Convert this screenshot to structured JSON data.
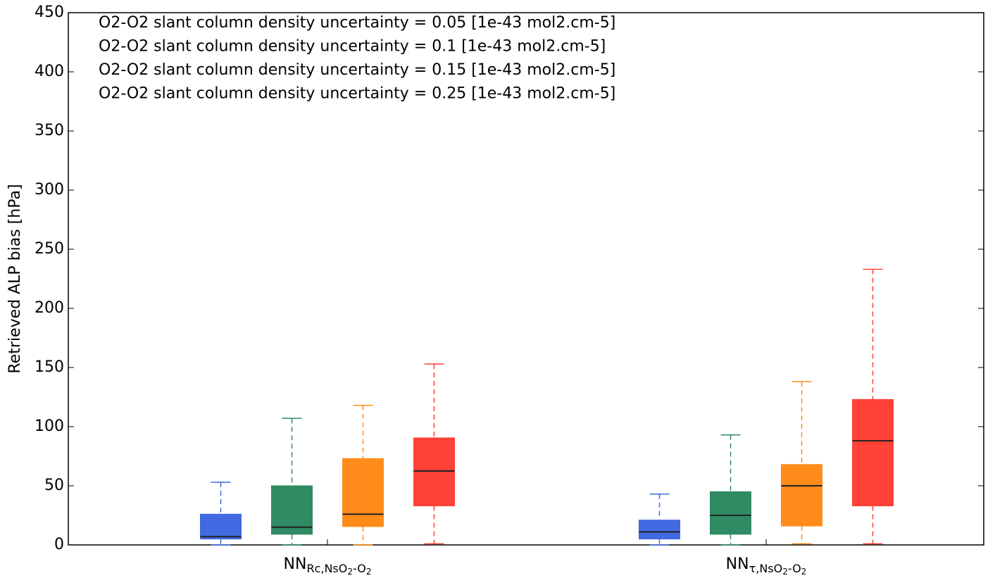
{
  "chart_data": {
    "type": "box",
    "y_label": "Retrieved ALP bias [hPa]",
    "category_labels": [
      [
        {
          "t": "NN",
          "lvl": 0
        },
        {
          "t": "Rc,NsO",
          "lvl": 1
        },
        {
          "t": "2",
          "lvl": 2
        },
        {
          "t": "-O",
          "lvl": 1
        },
        {
          "t": "2",
          "lvl": 2
        }
      ],
      [
        {
          "t": "NN",
          "lvl": 0
        },
        {
          "t": "τ,NsO",
          "lvl": 1
        },
        {
          "t": "2",
          "lvl": 2
        },
        {
          "t": "-O",
          "lvl": 1
        },
        {
          "t": "2",
          "lvl": 2
        }
      ]
    ],
    "series": [
      {
        "name": "O2-O2 slant column density uncertainty = 0.05 [1e-43 mol2.cm-5]",
        "color": "#4169e1",
        "values": [
          {
            "whislo": 0,
            "q1": 5,
            "med": 7,
            "q3": 26,
            "whishi": 53
          },
          {
            "whislo": 0,
            "q1": 5,
            "med": 11,
            "q3": 21,
            "whishi": 43
          }
        ]
      },
      {
        "name": "O2-O2 slant column density uncertainty = 0.1 [1e-43 mol2.cm-5]",
        "color": "#2e8b64",
        "values": [
          {
            "whislo": 0,
            "q1": 9,
            "med": 15,
            "q3": 50,
            "whishi": 107
          },
          {
            "whislo": 0,
            "q1": 9,
            "med": 25,
            "q3": 45,
            "whishi": 93
          }
        ]
      },
      {
        "name": "O2-O2 slant column density uncertainty = 0.15 [1e-43 mol2.cm-5]",
        "color": "#ff8c1a",
        "values": [
          {
            "whislo": 0,
            "q1": 15.5,
            "med": 26,
            "q3": 73,
            "whishi": 118
          },
          {
            "whislo": 1,
            "q1": 16,
            "med": 50,
            "q3": 68,
            "whishi": 138
          }
        ]
      },
      {
        "name": "O2-O2 slant column density uncertainty = 0.25 [1e-43 mol2.cm-5]",
        "color": "#ff4136",
        "values": [
          {
            "whislo": 1,
            "q1": 33,
            "med": 62.5,
            "q3": 90.5,
            "whishi": 153
          },
          {
            "whislo": 1,
            "q1": 33,
            "med": 88,
            "q3": 123,
            "whishi": 233
          }
        ]
      }
    ],
    "ylim": [
      0,
      450
    ],
    "yticks": [
      0,
      50,
      100,
      150,
      200,
      250,
      300,
      350,
      400,
      450
    ]
  }
}
